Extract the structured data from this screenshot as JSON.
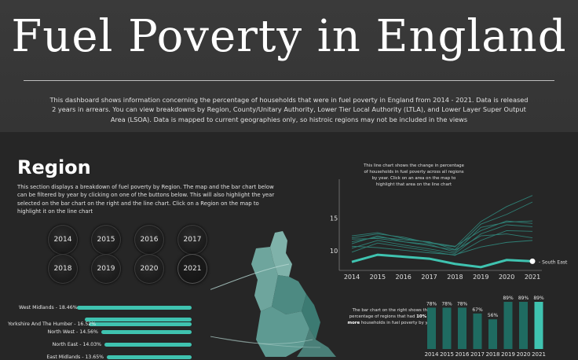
{
  "header": {
    "title": "Fuel Poverty in England",
    "description": "This dashboard shows information concerning the percentage of households that were in fuel poverty in England from 2014 - 2021. Data is released 2 years in arrears. You can view breakdowns by Region, County/Unitary Authority, Lower Tier Local Authority (LTLA), and Lower Layer Super Output Area (LSOA). Data is mapped to current geographies only, so histroic regions may not be included in the views"
  },
  "region": {
    "title": "Region",
    "description": "This section displays a breakdown of fuel poverty by Region. The map and the bar chart below can be filtered by year by clicking on one of the buttons below. This will also highlight the year selected on the bar chart on the right and the line chart. Click on a Region on the map to highlight it on the line chart",
    "year_buttons": [
      "2014",
      "2015",
      "2016",
      "2017",
      "2018",
      "2019",
      "2020",
      "2021"
    ],
    "selected_year": "2021",
    "bars": [
      {
        "label": "West Midlands - 18.46%",
        "value": 18.46
      },
      {
        "label": "",
        "value": 17.2
      },
      {
        "label": "Yorkshire And The Humber - 16.52%",
        "value": 16.52
      },
      {
        "label": "North West - 14.56%",
        "value": 14.56
      },
      {
        "label": "North East - 14.03%",
        "value": 14.03
      },
      {
        "label": "East Midlands - 13.65%",
        "value": 13.65
      }
    ]
  },
  "line_chart_note": "This line chart shows the change in percentage of households in fuel poverty across all regions by year. Click on an area on the map to highlight that area on the line chart",
  "bar_chart_note_pre": "The bar chart on the right shows the percentage of regions that had ",
  "bar_chart_note_bold": "10% or more",
  "bar_chart_note_post": " households in fuel poverty by year",
  "colors": {
    "accent": "#3fc3b0",
    "dark_teal": "#1f6b61",
    "map_teal": "#5e9a92"
  },
  "chart_data": [
    {
      "type": "line",
      "x": [
        2014,
        2015,
        2016,
        2017,
        2018,
        2019,
        2020,
        2021
      ],
      "yticks": [
        10,
        15
      ],
      "ylim": [
        7,
        21
      ],
      "highlight": {
        "name": "South East",
        "label": "- South East",
        "values": [
          8.3,
          9.4,
          9.1,
          8.8,
          8.0,
          7.5,
          8.6,
          8.4
        ]
      },
      "series": [
        {
          "values": [
            12.0,
            12.6,
            12.1,
            11.2,
            10.6,
            14.5,
            16.8,
            18.5
          ]
        },
        {
          "values": [
            11.4,
            12.1,
            11.7,
            11.4,
            10.2,
            14.1,
            15.6,
            17.5
          ]
        },
        {
          "values": [
            11.1,
            12.3,
            11.4,
            11.0,
            9.8,
            13.6,
            14.4,
            14.6
          ]
        },
        {
          "values": [
            12.3,
            12.8,
            11.9,
            11.3,
            10.7,
            13.1,
            14.6,
            14.2
          ]
        },
        {
          "values": [
            10.4,
            11.6,
            10.9,
            10.3,
            9.6,
            12.6,
            14.0,
            13.7
          ]
        },
        {
          "values": [
            9.8,
            11.2,
            10.6,
            10.0,
            9.3,
            11.6,
            13.1,
            13.0
          ]
        },
        {
          "values": [
            11.8,
            11.9,
            11.4,
            10.8,
            10.1,
            12.3,
            12.6,
            12.0
          ]
        },
        {
          "values": [
            10.7,
            10.5,
            10.1,
            9.7,
            9.4,
            10.6,
            11.3,
            11.6
          ]
        }
      ]
    },
    {
      "type": "bar",
      "categories": [
        "2014",
        "2015",
        "2016",
        "2017",
        "2018",
        "2019",
        "2020",
        "2021"
      ],
      "values": [
        78,
        78,
        78,
        67,
        56,
        89,
        89,
        89
      ],
      "data_labels": [
        "78%",
        "78%",
        "78%",
        "67%",
        "56%",
        "89%",
        "89%",
        "89%"
      ],
      "highlight": "2021"
    }
  ]
}
